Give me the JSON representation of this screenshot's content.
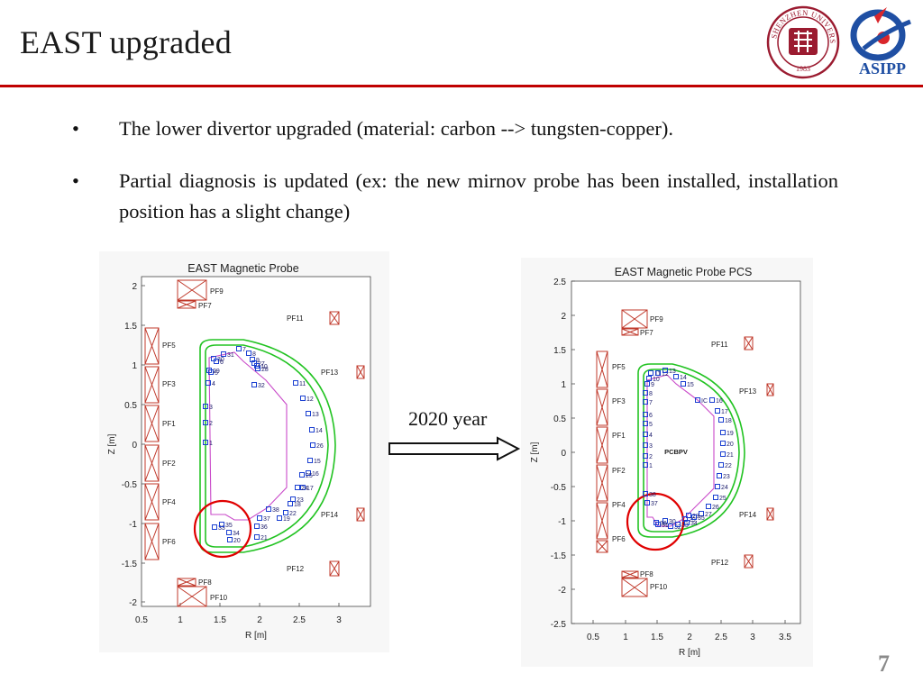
{
  "slide": {
    "title": "EAST upgraded",
    "page_number": "7",
    "accent_color": "#c00000"
  },
  "logos": {
    "szu": {
      "name": "Shenzhen University seal",
      "text": "SHENZHEN UNIVERSITY",
      "year": "1983",
      "color": "#9b1b30"
    },
    "asipp": {
      "name": "ASIPP logo",
      "text": "ASIPP",
      "color": "#1f4fa3"
    }
  },
  "bullets": [
    {
      "marker": "•",
      "text": "The lower divertor upgraded (material: carbon --> tungsten-copper)."
    },
    {
      "marker": "•",
      "text": "Partial diagnosis is updated (ex: the new mirnov probe has been installed,  installation position has a slight change)"
    }
  ],
  "transition": {
    "label": "2020 year",
    "arrow_icon": "right-arrow-icon"
  },
  "figures": [
    {
      "title": "EAST Magnetic Probe",
      "xlabel": "R [m]",
      "ylabel": "Z [m]",
      "xticks": [
        "0.5",
        "1",
        "1.5",
        "2",
        "2.5",
        "3"
      ],
      "yticks": [
        "2",
        "1.5",
        "1",
        "0.5",
        "0",
        "-0.5",
        "-1",
        "-1.5",
        "-2"
      ],
      "coil_labels": [
        "PF9",
        "PF7",
        "PF11",
        "PF5",
        "PF13",
        "PF3",
        "PF1",
        "PF2",
        "PF4",
        "PF14",
        "PF6",
        "PF12",
        "PF8",
        "PF10"
      ],
      "probe_labels": [
        "1",
        "2",
        "3",
        "4",
        "5",
        "6",
        "7",
        "8",
        "9",
        "10",
        "11",
        "12",
        "13",
        "14",
        "15",
        "16",
        "17",
        "18",
        "19",
        "20",
        "21",
        "22",
        "23",
        "24",
        "25",
        "26",
        "27",
        "28",
        "29",
        "30",
        "31",
        "32",
        "33",
        "34",
        "35",
        "36",
        "37",
        "38"
      ],
      "highlight": "lower divertor"
    },
    {
      "title": "EAST Magnetic Probe PCS",
      "xlabel": "R [m]",
      "ylabel": "Z [m]",
      "xticks": [
        "0.5",
        "1",
        "1.5",
        "2",
        "2.5",
        "3",
        "3.5"
      ],
      "yticks": [
        "2.5",
        "2",
        "1.5",
        "1",
        "0.5",
        "0",
        "-0.5",
        "-1",
        "-1.5",
        "-2",
        "-2.5"
      ],
      "coil_labels": [
        "PF9",
        "PF7",
        "PF11",
        "PF5",
        "PF13",
        "PF3",
        "PF1",
        "PF2",
        "PF4",
        "PF14",
        "PF6",
        "PF12",
        "PF8",
        "PF10"
      ],
      "center_label": "PCBPV",
      "probe_labels": [
        "1",
        "2",
        "3",
        "4",
        "5",
        "6",
        "7",
        "8",
        "9",
        "10",
        "11",
        "12",
        "13",
        "14",
        "15",
        "16",
        "17",
        "18",
        "19",
        "20",
        "21",
        "22",
        "23",
        "24",
        "25",
        "26",
        "27",
        "28",
        "29",
        "30",
        "31",
        "32",
        "33",
        "34",
        "35",
        "36",
        "37",
        "38",
        "IC"
      ],
      "highlight": "lower divertor"
    }
  ]
}
